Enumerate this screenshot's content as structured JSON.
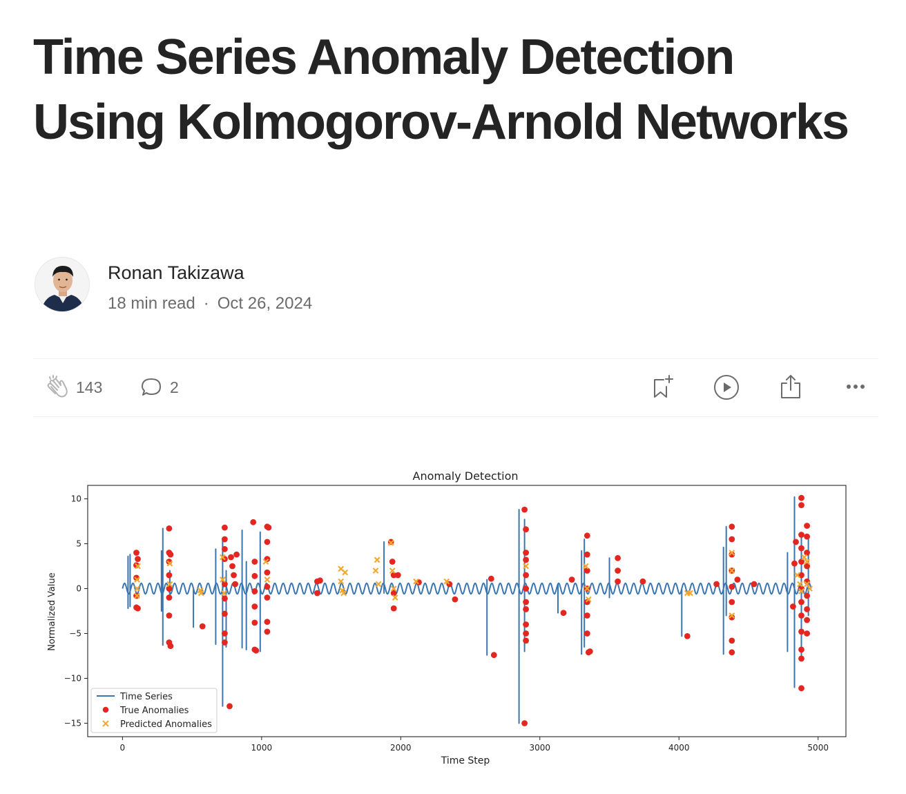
{
  "article": {
    "title": "Time Series Anomaly Detection Using Kolmogorov-Arnold Networks",
    "author": "Ronan Takizawa",
    "read_time": "18 min read",
    "separator": "·",
    "date": "Oct 26, 2024"
  },
  "actions": {
    "claps": "143",
    "responses": "2",
    "icons": [
      "clap-icon",
      "comment-icon",
      "bookmark-add-icon",
      "play-icon",
      "share-icon",
      "more-icon"
    ]
  },
  "colors": {
    "series": "#3a75b0",
    "true_anomalies": "#e3261f",
    "predicted_anomalies": "#f2a830"
  },
  "chart_data": {
    "type": "line",
    "title": "Anomaly Detection",
    "xlabel": "Time Step",
    "ylabel": "Normalized Value",
    "xlim": [
      -250,
      5200
    ],
    "ylim": [
      -16.5,
      11.5
    ],
    "xticks": [
      0,
      1000,
      2000,
      3000,
      4000,
      5000
    ],
    "yticks": [
      10,
      5,
      0,
      -5,
      -10,
      -15
    ],
    "ytick_labels": [
      "10",
      "5",
      "0",
      "−5",
      "−10",
      "−15"
    ],
    "legend": {
      "placement": "lower-left",
      "entries": [
        "Time Series",
        "True Anomalies",
        "Predicted Anomalies"
      ]
    },
    "grid": false,
    "series": [
      {
        "name": "Time Series",
        "kind": "line",
        "baseline": {
          "amplitude": 0.6,
          "period": 60,
          "x_start": 0,
          "x_end": 4950
        },
        "spikes": [
          {
            "x": 40,
            "lo": -2.2,
            "hi": 3.6
          },
          {
            "x": 55,
            "lo": -2.0,
            "hi": 3.8
          },
          {
            "x": 280,
            "lo": -2.5,
            "hi": 4.2
          },
          {
            "x": 290,
            "lo": -6.3,
            "hi": 6.7
          },
          {
            "x": 340,
            "lo": -1.0,
            "hi": 2.0
          },
          {
            "x": 510,
            "lo": -4.3,
            "hi": 0.0
          },
          {
            "x": 670,
            "lo": -6.2,
            "hi": 4.4
          },
          {
            "x": 720,
            "lo": -13.1,
            "hi": 5.6
          },
          {
            "x": 745,
            "lo": -6.5,
            "hi": 2.0
          },
          {
            "x": 860,
            "lo": -6.6,
            "hi": 6.5
          },
          {
            "x": 890,
            "lo": -6.8,
            "hi": 3.0
          },
          {
            "x": 990,
            "lo": -7.0,
            "hi": 6.3
          },
          {
            "x": 1880,
            "lo": -0.5,
            "hi": 5.2
          },
          {
            "x": 2620,
            "lo": -7.4,
            "hi": 1.0
          },
          {
            "x": 2850,
            "lo": -15.0,
            "hi": 8.8
          },
          {
            "x": 2890,
            "lo": -7.0,
            "hi": 7.7
          },
          {
            "x": 3130,
            "lo": -2.7,
            "hi": 0.0
          },
          {
            "x": 3300,
            "lo": -7.3,
            "hi": 4.2
          },
          {
            "x": 3320,
            "lo": -6.5,
            "hi": 5.5
          },
          {
            "x": 3500,
            "lo": -1.0,
            "hi": 3.4
          },
          {
            "x": 4020,
            "lo": -5.3,
            "hi": 0.0
          },
          {
            "x": 4320,
            "lo": -7.3,
            "hi": 4.6
          },
          {
            "x": 4340,
            "lo": -3.0,
            "hi": 6.9
          },
          {
            "x": 4780,
            "lo": -7.0,
            "hi": 4.0
          },
          {
            "x": 4830,
            "lo": -11.0,
            "hi": 10.2
          },
          {
            "x": 4880,
            "lo": -7.5,
            "hi": 6.0
          },
          {
            "x": 4930,
            "lo": -3.0,
            "hi": 5.5
          }
        ]
      },
      {
        "name": "True Anomalies",
        "kind": "scatter",
        "points": [
          [
            100,
            4.0
          ],
          [
            100,
            2.6
          ],
          [
            100,
            1.2
          ],
          [
            100,
            -0.8
          ],
          [
            100,
            -2.1
          ],
          [
            110,
            3.3
          ],
          [
            110,
            -2.2
          ],
          [
            335,
            6.7
          ],
          [
            335,
            4.0
          ],
          [
            335,
            3.0
          ],
          [
            335,
            1.5
          ],
          [
            335,
            0.0
          ],
          [
            335,
            -1.0
          ],
          [
            335,
            -3.0
          ],
          [
            335,
            -6.0
          ],
          [
            345,
            3.8
          ],
          [
            345,
            -6.4
          ],
          [
            575,
            -4.2
          ],
          [
            735,
            6.8
          ],
          [
            735,
            5.5
          ],
          [
            735,
            4.4
          ],
          [
            735,
            3.3
          ],
          [
            735,
            0.5
          ],
          [
            735,
            -1.1
          ],
          [
            735,
            -2.8
          ],
          [
            735,
            -5.0
          ],
          [
            735,
            -6.0
          ],
          [
            770,
            -13.1
          ],
          [
            780,
            3.5
          ],
          [
            790,
            2.5
          ],
          [
            800,
            1.5
          ],
          [
            810,
            0.5
          ],
          [
            820,
            3.8
          ],
          [
            940,
            7.4
          ],
          [
            950,
            3.0
          ],
          [
            950,
            1.4
          ],
          [
            950,
            -0.3
          ],
          [
            950,
            -2.0
          ],
          [
            950,
            -3.8
          ],
          [
            950,
            -6.8
          ],
          [
            960,
            -6.9
          ],
          [
            1040,
            6.9
          ],
          [
            1040,
            5.2
          ],
          [
            1040,
            3.3
          ],
          [
            1040,
            1.8
          ],
          [
            1040,
            0.2
          ],
          [
            1040,
            -1.0
          ],
          [
            1040,
            -3.7
          ],
          [
            1040,
            -4.8
          ],
          [
            1050,
            6.8
          ],
          [
            1400,
            0.8
          ],
          [
            1400,
            -0.5
          ],
          [
            1420,
            0.9
          ],
          [
            1930,
            5.2
          ],
          [
            1940,
            3.0
          ],
          [
            1950,
            1.5
          ],
          [
            1950,
            -0.5
          ],
          [
            1950,
            -2.2
          ],
          [
            1980,
            1.5
          ],
          [
            2130,
            0.7
          ],
          [
            2350,
            0.5
          ],
          [
            2390,
            -1.2
          ],
          [
            2650,
            1.1
          ],
          [
            2670,
            -7.4
          ],
          [
            2890,
            8.8
          ],
          [
            2900,
            6.6
          ],
          [
            2900,
            4.0
          ],
          [
            2900,
            3.2
          ],
          [
            2900,
            1.5
          ],
          [
            2900,
            0.0
          ],
          [
            2900,
            -1.5
          ],
          [
            2900,
            -2.3
          ],
          [
            2900,
            -4.0
          ],
          [
            2900,
            -5.0
          ],
          [
            2900,
            -5.8
          ],
          [
            2890,
            -15.0
          ],
          [
            3170,
            -2.7
          ],
          [
            3230,
            1.0
          ],
          [
            3340,
            5.9
          ],
          [
            3340,
            3.8
          ],
          [
            3340,
            2.0
          ],
          [
            3340,
            0.0
          ],
          [
            3340,
            -1.5
          ],
          [
            3340,
            -3.0
          ],
          [
            3340,
            -5.0
          ],
          [
            3350,
            -7.1
          ],
          [
            3360,
            -7.0
          ],
          [
            3560,
            3.4
          ],
          [
            3560,
            2.0
          ],
          [
            3560,
            0.8
          ],
          [
            3740,
            0.8
          ],
          [
            4060,
            -5.3
          ],
          [
            4270,
            0.5
          ],
          [
            4380,
            6.9
          ],
          [
            4380,
            5.5
          ],
          [
            4380,
            3.8
          ],
          [
            4380,
            2.0
          ],
          [
            4380,
            0.2
          ],
          [
            4380,
            -1.5
          ],
          [
            4380,
            -3.2
          ],
          [
            4380,
            -5.8
          ],
          [
            4380,
            -7.1
          ],
          [
            4420,
            1.0
          ],
          [
            4540,
            0.5
          ],
          [
            4880,
            10.1
          ],
          [
            4880,
            9.3
          ],
          [
            4880,
            6.0
          ],
          [
            4880,
            4.5
          ],
          [
            4880,
            3.0
          ],
          [
            4880,
            1.5
          ],
          [
            4880,
            0.0
          ],
          [
            4880,
            -1.5
          ],
          [
            4880,
            -3.0
          ],
          [
            4880,
            -4.8
          ],
          [
            4880,
            -6.8
          ],
          [
            4880,
            -7.8
          ],
          [
            4880,
            -11.1
          ],
          [
            4840,
            5.2
          ],
          [
            4920,
            7.0
          ],
          [
            4920,
            5.8
          ],
          [
            4920,
            4.0
          ],
          [
            4920,
            2.5
          ],
          [
            4920,
            0.8
          ],
          [
            4920,
            -0.8
          ],
          [
            4920,
            -2.3
          ],
          [
            4920,
            -3.5
          ],
          [
            4920,
            -5.0
          ],
          [
            4820,
            -2.0
          ],
          [
            4830,
            2.8
          ]
        ]
      },
      {
        "name": "Predicted Anomalies",
        "kind": "scatter",
        "points": [
          [
            105,
            1.0
          ],
          [
            105,
            0.0
          ],
          [
            105,
            -0.8
          ],
          [
            110,
            2.5
          ],
          [
            340,
            0.5
          ],
          [
            340,
            2.8
          ],
          [
            560,
            -0.2
          ],
          [
            565,
            -0.5
          ],
          [
            720,
            3.5
          ],
          [
            720,
            1.0
          ],
          [
            730,
            -0.5
          ],
          [
            1030,
            3.0
          ],
          [
            1040,
            1.0
          ],
          [
            1570,
            2.2
          ],
          [
            1570,
            0.8
          ],
          [
            1580,
            -0.2
          ],
          [
            1590,
            -0.5
          ],
          [
            1600,
            1.8
          ],
          [
            1820,
            2.0
          ],
          [
            1830,
            3.2
          ],
          [
            1840,
            0.5
          ],
          [
            1930,
            5.1
          ],
          [
            1940,
            2.0
          ],
          [
            1950,
            0.0
          ],
          [
            1960,
            -1.0
          ],
          [
            2110,
            0.8
          ],
          [
            2330,
            0.8
          ],
          [
            2900,
            2.5
          ],
          [
            3330,
            2.5
          ],
          [
            3340,
            0.0
          ],
          [
            3350,
            -1.2
          ],
          [
            4060,
            -0.5
          ],
          [
            4080,
            -0.5
          ],
          [
            4380,
            4.0
          ],
          [
            4380,
            2.0
          ],
          [
            4380,
            -3.0
          ],
          [
            4850,
            1.5
          ],
          [
            4870,
            0.5
          ],
          [
            4880,
            -0.3
          ],
          [
            4900,
            3.5
          ],
          [
            4920,
            3.0
          ],
          [
            4920,
            0.5
          ],
          [
            4940,
            0.0
          ]
        ]
      }
    ]
  }
}
